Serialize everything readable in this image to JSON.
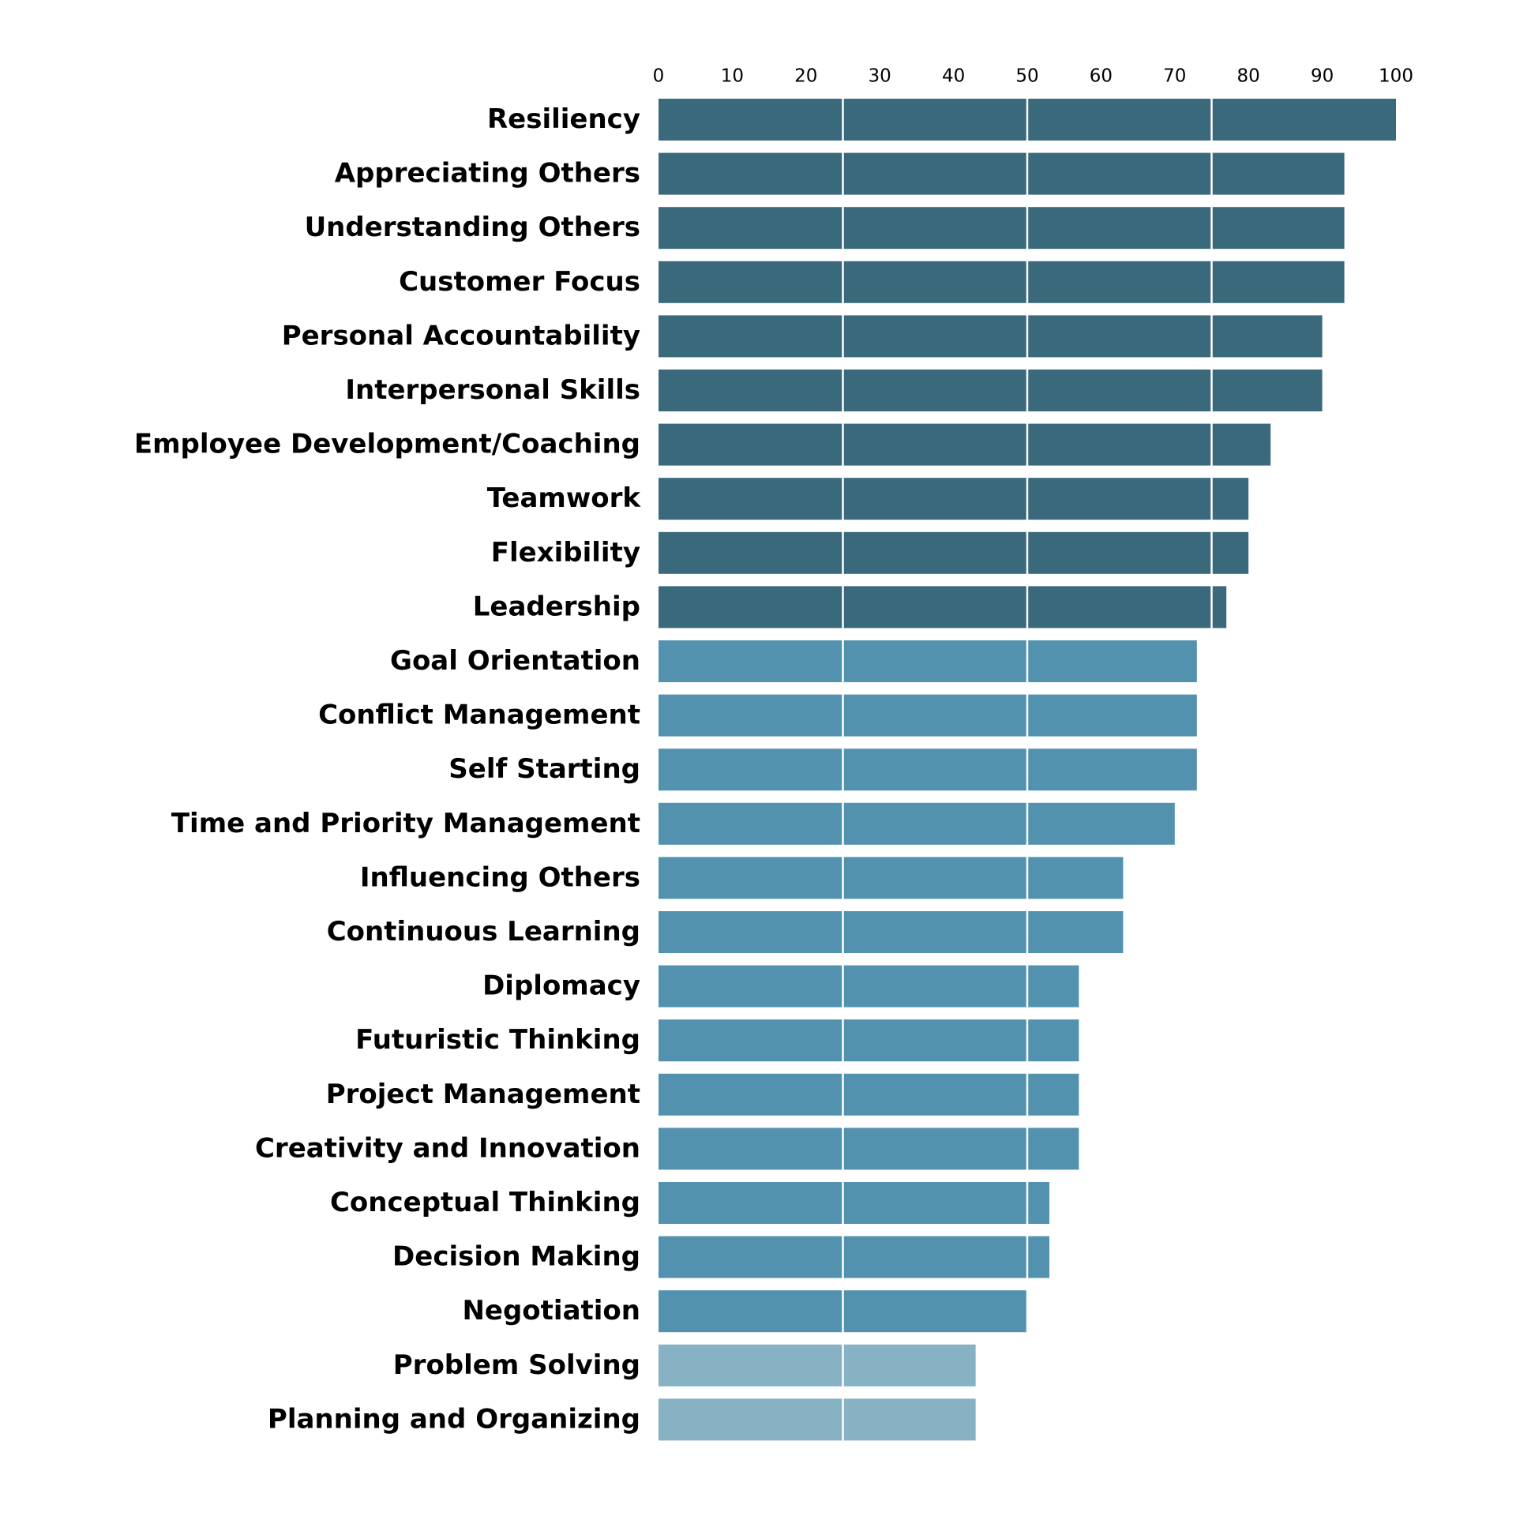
{
  "chart_data": {
    "type": "hbar",
    "categories": [
      "Resiliency",
      "Appreciating Others",
      "Understanding Others",
      "Customer Focus",
      "Personal Accountability",
      "Interpersonal Skills",
      "Employee Development/Coaching",
      "Teamwork",
      "Flexibility",
      "Leadership",
      "Goal Orientation",
      "Conflict Management",
      "Self Starting",
      "Time and Priority Management",
      "Influencing Others",
      "Continuous Learning",
      "Diplomacy",
      "Futuristic Thinking",
      "Project Management",
      "Creativity and Innovation",
      "Conceptual Thinking",
      "Decision Making",
      "Negotiation",
      "Problem Solving",
      "Planning and Organizing"
    ],
    "values": [
      100,
      93,
      93,
      93,
      90,
      90,
      83,
      80,
      80,
      77,
      73,
      73,
      73,
      70,
      63,
      63,
      57,
      57,
      57,
      57,
      53,
      53,
      50,
      43,
      43
    ],
    "colors": [
      "#3a697c",
      "#3a697c",
      "#3a697c",
      "#3a697c",
      "#3a697c",
      "#3a697c",
      "#3a697c",
      "#3a697c",
      "#3a697c",
      "#3a697c",
      "#5292ae",
      "#5292ae",
      "#5292ae",
      "#5292ae",
      "#5292ae",
      "#5292ae",
      "#5292ae",
      "#5292ae",
      "#5292ae",
      "#5292ae",
      "#5292ae",
      "#5292ae",
      "#5292ae",
      "#86b2c4",
      "#86b2c4"
    ],
    "xlim": [
      0,
      100
    ],
    "xticks": [
      0,
      10,
      20,
      30,
      40,
      50,
      60,
      70,
      80,
      90,
      100
    ],
    "gridlines": [
      25,
      50,
      75
    ],
    "grid_color": "#ffffff"
  }
}
